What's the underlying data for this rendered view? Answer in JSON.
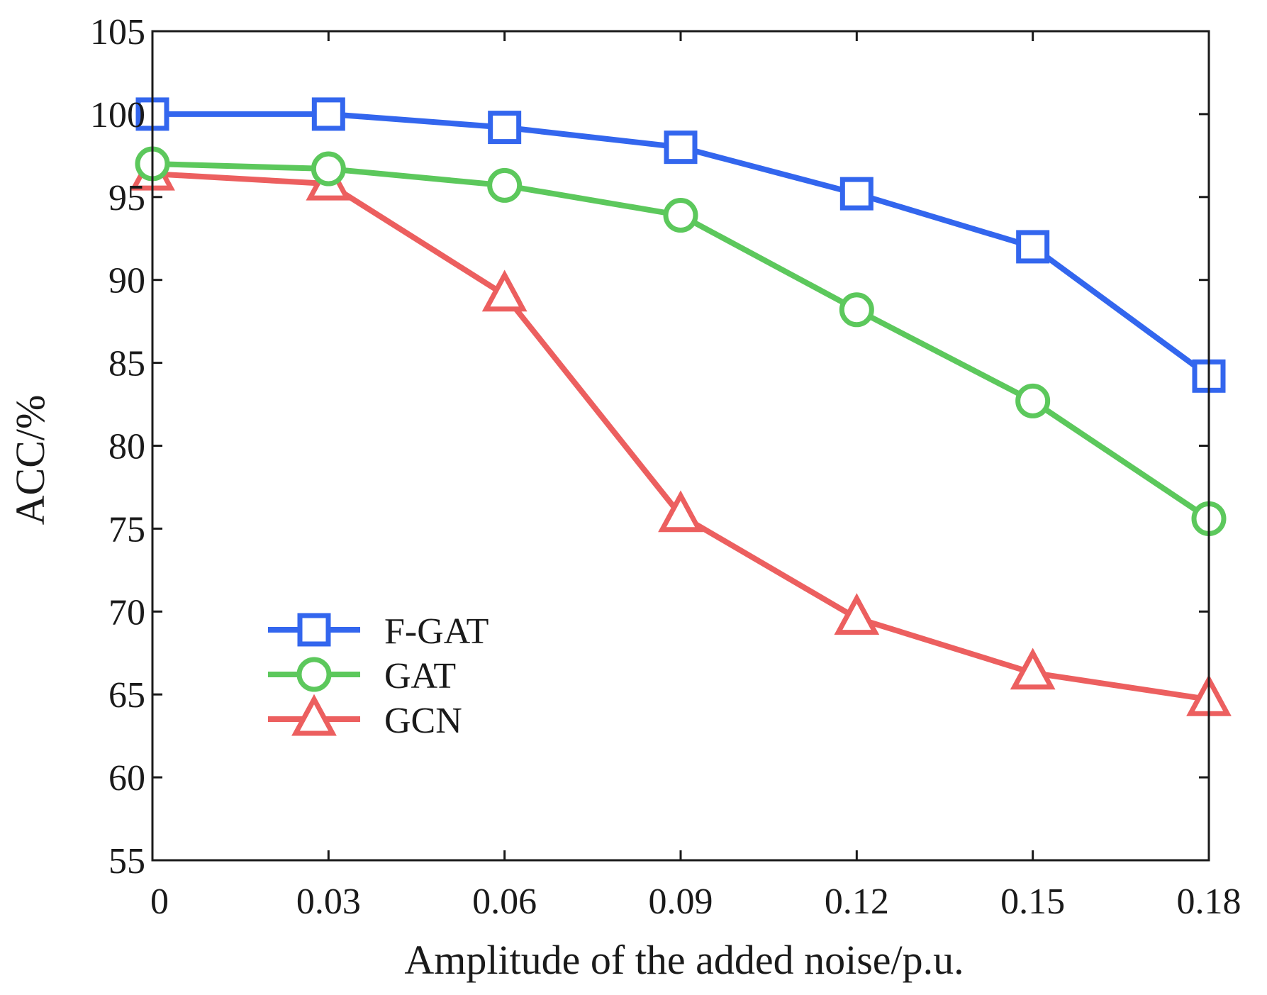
{
  "chart_data": {
    "type": "line",
    "title": "",
    "xlabel": "Amplitude of the added noise/p.u.",
    "ylabel": "ACC/%",
    "x": [
      0,
      0.03,
      0.06,
      0.09,
      0.12,
      0.15,
      0.18
    ],
    "x_tick_labels": [
      "0",
      "0.03",
      "0.06",
      "0.09",
      "0.12",
      "0.15",
      "0.18"
    ],
    "xlim": [
      0,
      0.18
    ],
    "ylim": [
      55,
      105
    ],
    "y_ticks": [
      55,
      60,
      65,
      70,
      75,
      80,
      85,
      90,
      95,
      100,
      105
    ],
    "y_tick_labels": [
      "55",
      "60",
      "65",
      "70",
      "75",
      "80",
      "85",
      "90",
      "95",
      "100",
      "105"
    ],
    "grid": false,
    "legend_position": "lower-left",
    "series": [
      {
        "name": "F-GAT",
        "color": "#3366ee",
        "marker": "square",
        "values": [
          100,
          100,
          99.2,
          98,
          95.2,
          92,
          84.2
        ]
      },
      {
        "name": "GAT",
        "color": "#5cc85c",
        "marker": "circle",
        "values": [
          97,
          96.7,
          95.7,
          93.9,
          88.2,
          82.7,
          75.6
        ]
      },
      {
        "name": "GCN",
        "color": "#ec5f5f",
        "marker": "triangle",
        "values": [
          96.4,
          95.8,
          89.1,
          75.8,
          69.6,
          66.3,
          64.7
        ]
      }
    ]
  }
}
